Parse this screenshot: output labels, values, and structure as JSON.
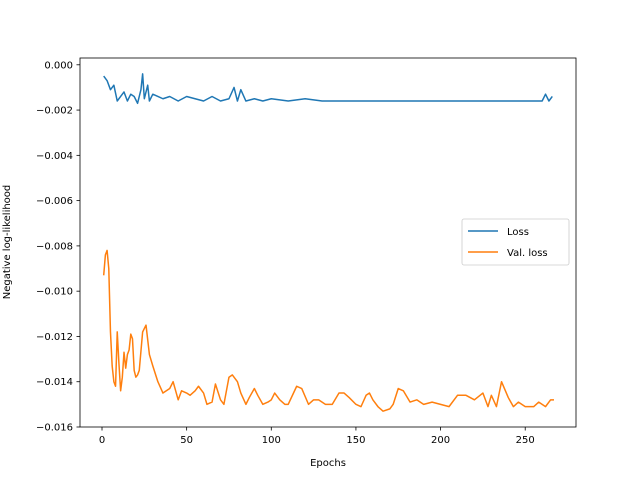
{
  "chart_data": {
    "type": "line",
    "title": "",
    "xlabel": "Epochs",
    "ylabel": "Negative log-likelihood",
    "xlim": [
      -13,
      280
    ],
    "ylim": [
      -0.016,
      0.0003
    ],
    "xticks": [
      0,
      50,
      100,
      150,
      200,
      250
    ],
    "xtick_labels": [
      "0",
      "50",
      "100",
      "150",
      "200",
      "250"
    ],
    "yticks": [
      0.0,
      -0.002,
      -0.004,
      -0.006,
      -0.008,
      -0.01,
      -0.012,
      -0.014,
      -0.016
    ],
    "ytick_labels": [
      "0.000",
      "−0.002",
      "−0.004",
      "−0.006",
      "−0.008",
      "−0.010",
      "−0.012",
      "−0.014",
      "−0.016"
    ],
    "grid": false,
    "legend_position": "center-right",
    "series": [
      {
        "name": "Loss",
        "color": "#1f77b4",
        "x": [
          1,
          3,
          5,
          7,
          9,
          11,
          13,
          15,
          17,
          19,
          21,
          23,
          24,
          25,
          27,
          28,
          30,
          33,
          36,
          40,
          45,
          50,
          55,
          60,
          65,
          70,
          75,
          78,
          80,
          82,
          85,
          90,
          95,
          100,
          110,
          120,
          130,
          140,
          150,
          160,
          170,
          180,
          190,
          200,
          210,
          220,
          230,
          240,
          250,
          260,
          262,
          264,
          266
        ],
        "y": [
          -0.0005,
          -0.0007,
          -0.0011,
          -0.0009,
          -0.0016,
          -0.0014,
          -0.0012,
          -0.0016,
          -0.0013,
          -0.0014,
          -0.0017,
          -0.0011,
          -0.0004,
          -0.0015,
          -0.0009,
          -0.0016,
          -0.0013,
          -0.0014,
          -0.0015,
          -0.0014,
          -0.0016,
          -0.0014,
          -0.0015,
          -0.0016,
          -0.0014,
          -0.0016,
          -0.0015,
          -0.001,
          -0.0016,
          -0.0011,
          -0.0016,
          -0.0015,
          -0.0016,
          -0.0015,
          -0.0016,
          -0.0015,
          -0.0016,
          -0.0016,
          -0.0016,
          -0.0016,
          -0.0016,
          -0.0016,
          -0.0016,
          -0.0016,
          -0.0016,
          -0.0016,
          -0.0016,
          -0.0016,
          -0.0016,
          -0.0016,
          -0.0013,
          -0.0016,
          -0.0014
        ]
      },
      {
        "name": "Val. loss",
        "color": "#ff7f0e",
        "x": [
          1,
          2,
          3,
          4,
          5,
          6,
          7,
          8,
          9,
          10,
          11,
          12,
          13,
          14,
          15,
          16,
          17,
          18,
          19,
          20,
          21,
          22,
          24,
          26,
          28,
          30,
          33,
          36,
          40,
          42,
          45,
          47,
          50,
          52,
          55,
          57,
          60,
          62,
          65,
          67,
          70,
          72,
          75,
          77,
          80,
          82,
          85,
          87,
          90,
          92,
          95,
          98,
          100,
          102,
          105,
          108,
          110,
          115,
          118,
          122,
          125,
          128,
          132,
          136,
          140,
          143,
          146,
          150,
          153,
          156,
          158,
          160,
          163,
          166,
          170,
          172,
          175,
          178,
          182,
          186,
          190,
          195,
          200,
          205,
          210,
          215,
          220,
          225,
          228,
          230,
          233,
          236,
          240,
          243,
          246,
          250,
          255,
          258,
          262,
          265,
          267
        ],
        "y": [
          -0.0093,
          -0.0084,
          -0.0082,
          -0.009,
          -0.0118,
          -0.0133,
          -0.014,
          -0.0142,
          -0.0118,
          -0.0132,
          -0.0144,
          -0.0138,
          -0.0127,
          -0.0134,
          -0.0128,
          -0.0126,
          -0.0119,
          -0.0121,
          -0.0135,
          -0.0138,
          -0.0137,
          -0.0135,
          -0.0118,
          -0.0115,
          -0.0128,
          -0.0133,
          -0.014,
          -0.0145,
          -0.0143,
          -0.014,
          -0.0148,
          -0.0144,
          -0.0145,
          -0.0146,
          -0.0144,
          -0.0142,
          -0.0145,
          -0.015,
          -0.0149,
          -0.0141,
          -0.0148,
          -0.015,
          -0.0138,
          -0.0137,
          -0.014,
          -0.0145,
          -0.015,
          -0.0147,
          -0.0143,
          -0.0146,
          -0.015,
          -0.0149,
          -0.0148,
          -0.0145,
          -0.0148,
          -0.015,
          -0.015,
          -0.0142,
          -0.0143,
          -0.015,
          -0.0148,
          -0.0148,
          -0.015,
          -0.015,
          -0.0145,
          -0.0145,
          -0.0147,
          -0.015,
          -0.0151,
          -0.0146,
          -0.0145,
          -0.0148,
          -0.0151,
          -0.0153,
          -0.0152,
          -0.015,
          -0.0143,
          -0.0144,
          -0.0149,
          -0.0148,
          -0.015,
          -0.0149,
          -0.015,
          -0.0151,
          -0.0146,
          -0.0146,
          -0.0148,
          -0.0145,
          -0.0151,
          -0.0146,
          -0.0151,
          -0.014,
          -0.0147,
          -0.0151,
          -0.0149,
          -0.0151,
          -0.0151,
          -0.0149,
          -0.0151,
          -0.0148,
          -0.0148
        ]
      }
    ]
  }
}
